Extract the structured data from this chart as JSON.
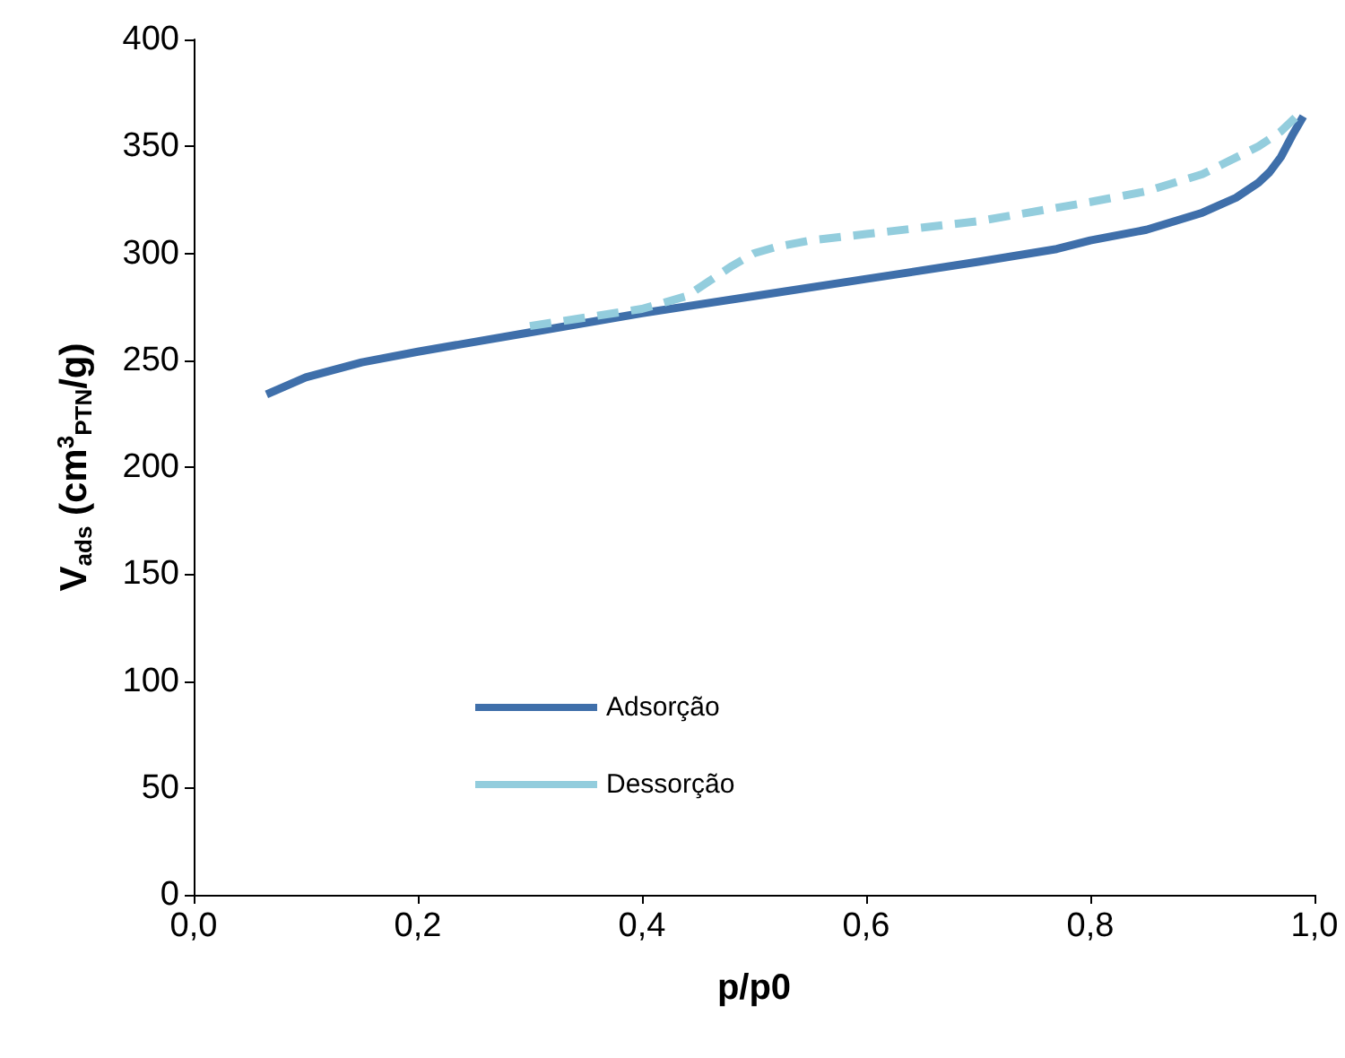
{
  "chart_data": {
    "type": "line",
    "xlabel": "p/p0",
    "ylabel": "V$_{ads}$ (cm$^{3}$$_{PTN}$/g)",
    "xlim": [
      0,
      1
    ],
    "xticks": [
      {
        "value": 0,
        "label": "0,0"
      },
      {
        "value": 0.2,
        "label": "0,2"
      },
      {
        "value": 0.4,
        "label": "0,4"
      },
      {
        "value": 0.6,
        "label": "0,6"
      },
      {
        "value": 0.8,
        "label": "0,8"
      },
      {
        "value": 1,
        "label": "1,0"
      }
    ],
    "ylim": [
      0,
      400
    ],
    "yticks": [
      0,
      50,
      100,
      150,
      200,
      250,
      300,
      350,
      400
    ],
    "grid": false,
    "legend": "bottom",
    "marker": "none",
    "series": [
      {
        "name": "Adsorção",
        "color": "#3f6faa",
        "line_style": "solid",
        "x": [
          0.065,
          0.1,
          0.15,
          0.2,
          0.3,
          0.4,
          0.5,
          0.6,
          0.7,
          0.77,
          0.8,
          0.85,
          0.9,
          0.93,
          0.95,
          0.96,
          0.97,
          0.98,
          0.99
        ],
        "values": [
          234,
          242,
          249,
          254,
          263,
          272,
          280,
          288,
          296,
          302,
          306,
          311,
          319,
          326,
          333,
          338,
          345,
          355,
          364
        ]
      },
      {
        "name": "Dessorção",
        "color": "#93cddd",
        "line_style": "dashed",
        "x": [
          0.3,
          0.35,
          0.4,
          0.44,
          0.46,
          0.48,
          0.5,
          0.52,
          0.55,
          0.6,
          0.7,
          0.8,
          0.85,
          0.9,
          0.95,
          0.97,
          0.99
        ],
        "values": [
          266,
          270,
          274,
          280,
          287,
          294,
          300,
          303,
          306,
          309,
          315,
          324,
          329,
          337,
          350,
          357,
          367
        ]
      }
    ]
  }
}
